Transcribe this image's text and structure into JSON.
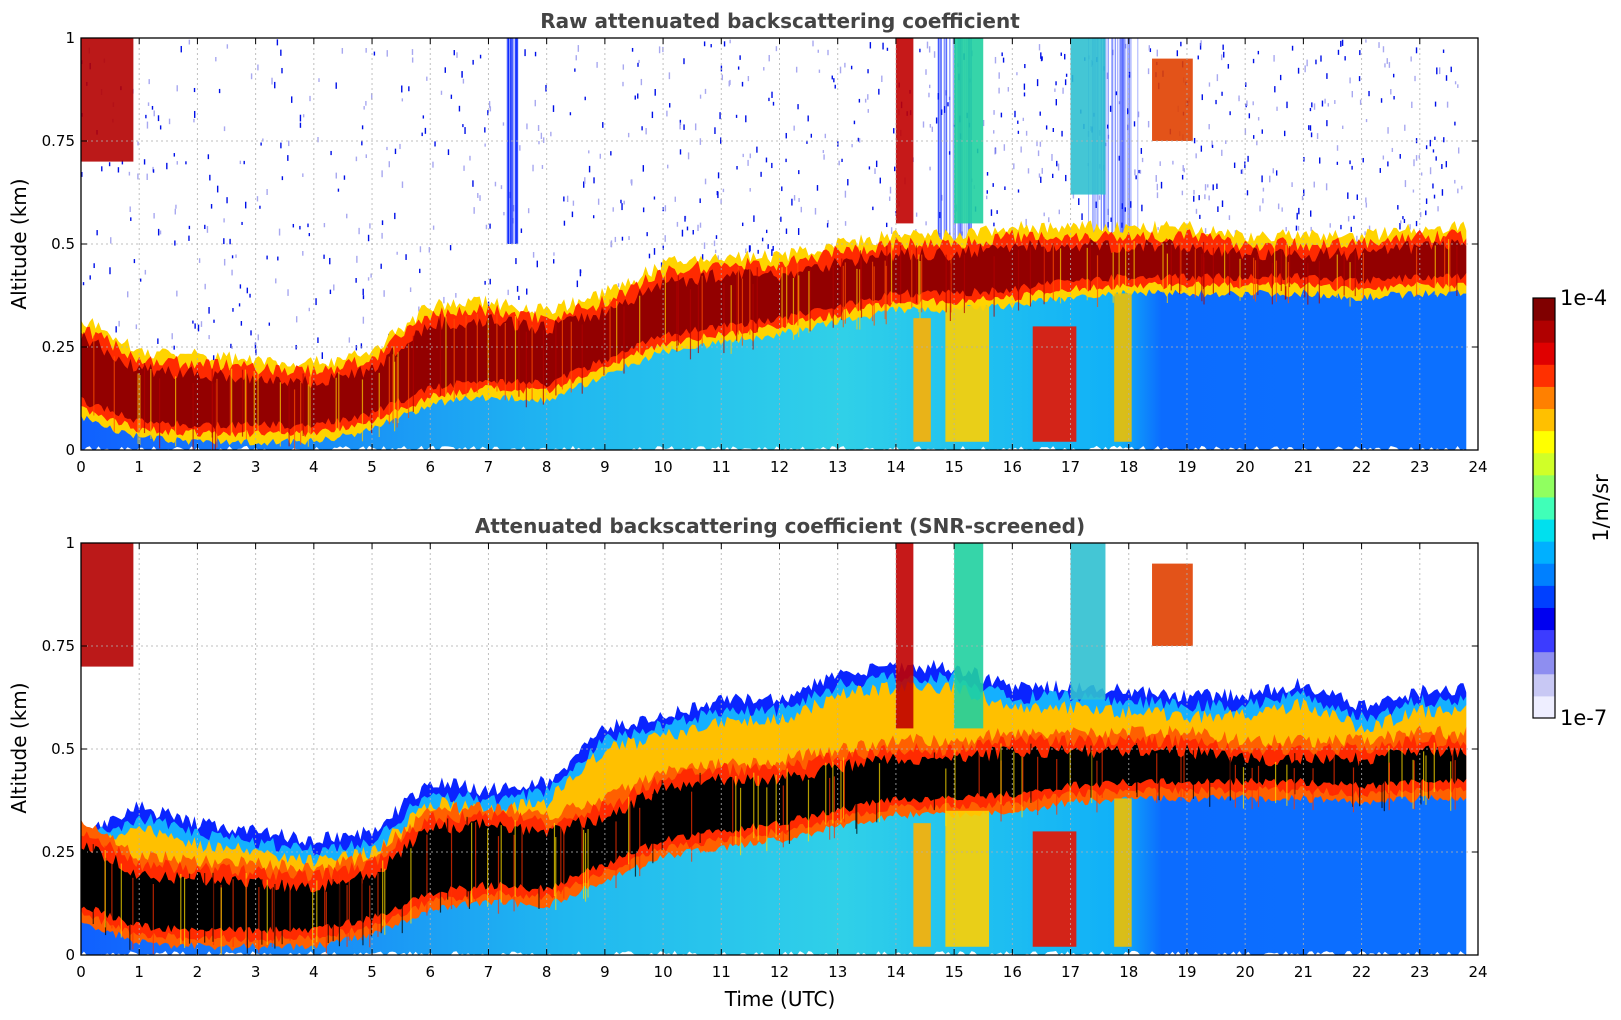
{
  "chart_data": [
    {
      "type": "heatmap",
      "title": "Raw attenuated backscattering coefficient",
      "xlabel": "",
      "ylabel": "Altitude (km)",
      "xlim": [
        0,
        24
      ],
      "ylim": [
        0,
        1
      ],
      "x_ticks": [
        "0",
        "1",
        "2",
        "3",
        "4",
        "5",
        "6",
        "7",
        "8",
        "9",
        "10",
        "11",
        "12",
        "13",
        "14",
        "15",
        "16",
        "17",
        "18",
        "19",
        "20",
        "21",
        "22",
        "23",
        "24"
      ],
      "y_ticks": [
        "0",
        "0.25",
        "0.5",
        "0.75",
        "1"
      ],
      "grid": true,
      "layer_top_km": [
        [
          0,
          0.3
        ],
        [
          1,
          0.22
        ],
        [
          2,
          0.21
        ],
        [
          3,
          0.2
        ],
        [
          4,
          0.19
        ],
        [
          5,
          0.22
        ],
        [
          6,
          0.33
        ],
        [
          7,
          0.34
        ],
        [
          8,
          0.32
        ],
        [
          9,
          0.36
        ],
        [
          10,
          0.43
        ],
        [
          11,
          0.45
        ],
        [
          12,
          0.45
        ],
        [
          13,
          0.48
        ],
        [
          14,
          0.5
        ],
        [
          15,
          0.5
        ],
        [
          16,
          0.52
        ],
        [
          17,
          0.52
        ],
        [
          18,
          0.52
        ],
        [
          19,
          0.52
        ],
        [
          20,
          0.5
        ],
        [
          21,
          0.5
        ],
        [
          22,
          0.5
        ],
        [
          23,
          0.52
        ],
        [
          23.8,
          0.52
        ]
      ],
      "layer_base_km": [
        [
          0,
          0.1
        ],
        [
          1,
          0.05
        ],
        [
          2,
          0.04
        ],
        [
          3,
          0.04
        ],
        [
          4,
          0.04
        ],
        [
          5,
          0.07
        ],
        [
          6,
          0.13
        ],
        [
          7,
          0.15
        ],
        [
          8,
          0.14
        ],
        [
          9,
          0.2
        ],
        [
          10,
          0.26
        ],
        [
          11,
          0.28
        ],
        [
          12,
          0.3
        ],
        [
          13,
          0.33
        ],
        [
          14,
          0.36
        ],
        [
          15,
          0.36
        ],
        [
          16,
          0.37
        ],
        [
          17,
          0.39
        ],
        [
          18,
          0.4
        ],
        [
          19,
          0.4
        ],
        [
          20,
          0.4
        ],
        [
          21,
          0.4
        ],
        [
          22,
          0.39
        ],
        [
          23,
          0.4
        ],
        [
          23.8,
          0.4
        ]
      ]
    },
    {
      "type": "heatmap",
      "title": "Attenuated backscattering coefficient (SNR-screened)",
      "xlabel": "Time (UTC)",
      "ylabel": "Altitude (km)",
      "xlim": [
        0,
        24
      ],
      "ylim": [
        0,
        1
      ],
      "x_ticks": [
        "0",
        "1",
        "2",
        "3",
        "4",
        "5",
        "6",
        "7",
        "8",
        "9",
        "10",
        "11",
        "12",
        "13",
        "14",
        "15",
        "16",
        "17",
        "18",
        "19",
        "20",
        "21",
        "22",
        "23",
        "24"
      ],
      "y_ticks": [
        "0",
        "0.25",
        "0.5",
        "0.75",
        "1"
      ],
      "grid": true,
      "screened_top_km": [
        [
          0,
          0.3
        ],
        [
          1,
          0.36
        ],
        [
          2,
          0.32
        ],
        [
          3,
          0.3
        ],
        [
          4,
          0.28
        ],
        [
          5,
          0.3
        ],
        [
          6,
          0.42
        ],
        [
          7,
          0.4
        ],
        [
          8,
          0.42
        ],
        [
          9,
          0.55
        ],
        [
          10,
          0.58
        ],
        [
          11,
          0.62
        ],
        [
          12,
          0.62
        ],
        [
          13,
          0.68
        ],
        [
          14,
          0.7
        ],
        [
          15,
          0.7
        ],
        [
          16,
          0.65
        ],
        [
          17,
          0.65
        ],
        [
          18,
          0.64
        ],
        [
          19,
          0.63
        ],
        [
          20,
          0.63
        ],
        [
          21,
          0.66
        ],
        [
          22,
          0.6
        ],
        [
          23,
          0.64
        ],
        [
          23.8,
          0.65
        ]
      ]
    }
  ],
  "colorbar": {
    "label": "1/m/sr",
    "max_label": "1e-4",
    "min_label": "1e-7",
    "colors": [
      "#eeeeff",
      "#c8c8f4",
      "#8e8ef0",
      "#3c3cff",
      "#0000f0",
      "#0040ff",
      "#0080ff",
      "#00b0ff",
      "#00e0ee",
      "#40ffb8",
      "#90ff60",
      "#d0ff28",
      "#ffff00",
      "#ffc000",
      "#ff8000",
      "#ff3000",
      "#e00000",
      "#b00000",
      "#800000"
    ]
  }
}
